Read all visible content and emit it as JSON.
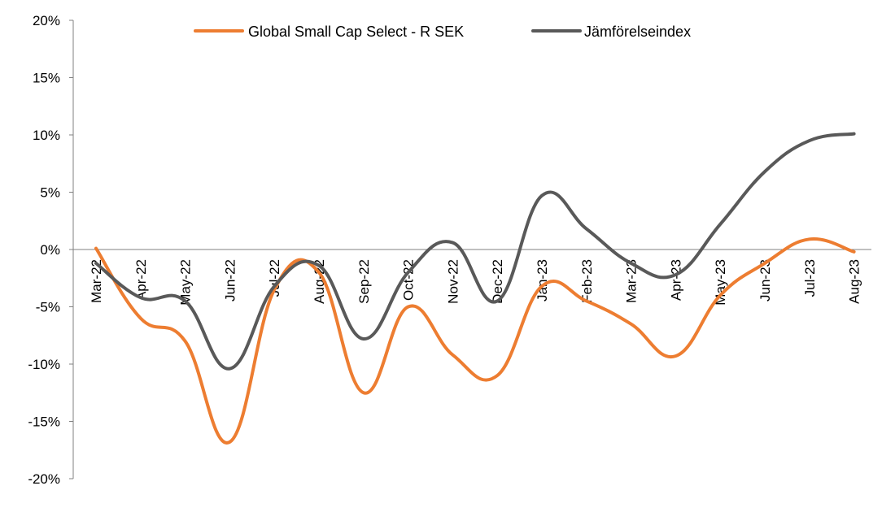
{
  "chart_data": {
    "type": "line",
    "categories": [
      "Mar-22",
      "Apr-22",
      "May-22",
      "Jun-22",
      "Jul-22",
      "Aug-22",
      "Sep-22",
      "Oct-22",
      "Nov-22",
      "Dec-22",
      "Jan-23",
      "Feb-23",
      "Mar-23",
      "Apr-23",
      "May-23",
      "Jun-23",
      "Jul-23",
      "Aug-23"
    ],
    "series": [
      {
        "name": "Global Small Cap Select - R SEK",
        "color": "#ED7D31",
        "values": [
          0.1,
          -6.0,
          -8.0,
          -16.8,
          -3.5,
          -2.0,
          -12.5,
          -5.0,
          -9.2,
          -11.0,
          -3.2,
          -4.5,
          -6.5,
          -9.3,
          -4.0,
          -1.2,
          0.9,
          -0.2
        ]
      },
      {
        "name": "Jämförelseindex",
        "color": "#595959",
        "values": [
          -1.2,
          -4.2,
          -4.5,
          -10.4,
          -3.2,
          -1.4,
          -7.8,
          -2.0,
          0.6,
          -4.5,
          4.7,
          1.8,
          -1.2,
          -2.2,
          2.2,
          6.8,
          9.5,
          10.1
        ]
      }
    ],
    "ylim": [
      -20,
      20
    ],
    "yticks": [
      -20,
      -15,
      -10,
      -5,
      0,
      5,
      10,
      15,
      20
    ],
    "yticks_labels": [
      "-20%",
      "-15%",
      "-10%",
      "-5%",
      "0%",
      "5%",
      "10%",
      "15%",
      "20%"
    ],
    "title": "",
    "xlabel": "",
    "ylabel": "",
    "legend_position": "top",
    "grid": false
  }
}
